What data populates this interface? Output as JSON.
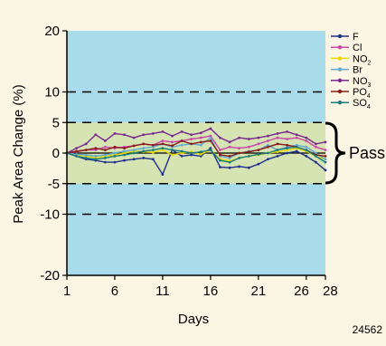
{
  "chart_data": {
    "type": "line",
    "xlabel": "Days",
    "ylabel": "Peak Area Change (%)",
    "xlim": [
      1,
      28
    ],
    "ylim": [
      -20,
      20
    ],
    "x_ticks": [
      "1",
      "6",
      "11",
      "16",
      "21",
      "26",
      "28"
    ],
    "y_ticks": [
      "20",
      "10",
      "5",
      "0",
      "-5",
      "-10",
      "-20"
    ],
    "x_tick_values": [
      1,
      6,
      11,
      16,
      21,
      26,
      28
    ],
    "y_tick_values": [
      20,
      10,
      5,
      0,
      -5,
      -10,
      -20
    ],
    "dashed_lines_at": [
      10,
      -10,
      5,
      -5
    ],
    "pass_band": [
      -5,
      5
    ],
    "pass_label": "Pass",
    "figure_number": "24562",
    "background_color": "#a8dcea",
    "pass_band_color": "#d5e4b2",
    "x": [
      1,
      2,
      3,
      4,
      5,
      6,
      7,
      8,
      9,
      10,
      11,
      12,
      13,
      14,
      15,
      16,
      17,
      18,
      19,
      20,
      21,
      22,
      23,
      24,
      25,
      26,
      27,
      28
    ],
    "series": [
      {
        "name": "F",
        "label_main": "F",
        "label_sub": "",
        "color": "#1f2f8c",
        "marker": "circle",
        "values": [
          0,
          -0.5,
          -1,
          -1.2,
          -1.5,
          -1.5,
          -1.2,
          -1,
          -0.8,
          -1,
          -3.5,
          0.5,
          -0.5,
          -0.3,
          -0.5,
          0.8,
          -2.3,
          -2.4,
          -2.2,
          -2.4,
          -1.8,
          -1,
          -0.5,
          0,
          0.3,
          -0.5,
          -1.5,
          -2.8
        ]
      },
      {
        "name": "Cl",
        "label_main": "Cl",
        "label_sub": "",
        "color": "#cc44aa",
        "marker": "square",
        "values": [
          0,
          0.2,
          0.5,
          0.5,
          1.0,
          0.8,
          1.0,
          1.2,
          1.5,
          1.3,
          2.0,
          1.8,
          2.0,
          2.3,
          2.5,
          2.8,
          0.5,
          1.0,
          0.8,
          1.0,
          1.5,
          2.0,
          2.5,
          2.3,
          2.5,
          2.0,
          1.0,
          0.5
        ]
      },
      {
        "name": "NO2",
        "label_main": "NO",
        "label_sub": "2",
        "color": "#e8d800",
        "marker": "triangle",
        "values": [
          0,
          -0.3,
          -0.5,
          -0.8,
          -0.5,
          -0.3,
          0,
          0.3,
          0.2,
          0.1,
          0.5,
          -0.3,
          0,
          0.2,
          -0.2,
          0.5,
          -1.0,
          -1.3,
          -0.8,
          -0.5,
          -0.3,
          0,
          0.2,
          0.5,
          0.8,
          0.3,
          -0.5,
          -1.0
        ]
      },
      {
        "name": "Br",
        "label_main": "Br",
        "label_sub": "",
        "color": "#60a8d0",
        "marker": "x",
        "values": [
          0,
          -0.2,
          -0.3,
          -0.5,
          -0.3,
          0,
          0.3,
          0.5,
          0.8,
          1.0,
          1.5,
          1.0,
          1.3,
          1.5,
          1.3,
          2.5,
          -0.5,
          -0.8,
          0,
          0.3,
          0.5,
          1.3,
          0.5,
          1.0,
          1.3,
          1.0,
          0,
          -1.0
        ]
      },
      {
        "name": "NO3",
        "label_main": "NO",
        "label_sub": "3",
        "color": "#7a2890",
        "marker": "star",
        "values": [
          0,
          0.8,
          1.5,
          3.0,
          2.0,
          3.2,
          3.0,
          2.5,
          3.0,
          3.2,
          3.5,
          2.8,
          3.5,
          3.0,
          3.3,
          4.0,
          2.5,
          1.8,
          2.5,
          2.3,
          2.5,
          2.8,
          3.2,
          3.5,
          3.0,
          2.5,
          1.5,
          1.8
        ]
      },
      {
        "name": "PO4",
        "label_main": "PO",
        "label_sub": "4",
        "color": "#8a1a1a",
        "marker": "circle",
        "values": [
          0,
          0.3,
          0.5,
          0.8,
          0.5,
          1.0,
          0.8,
          1.2,
          1.5,
          1.3,
          1.5,
          1.2,
          2.0,
          1.5,
          1.8,
          2.0,
          -0.3,
          -0.5,
          0,
          0.2,
          0.5,
          1.0,
          1.5,
          1.3,
          1.0,
          0.5,
          -0.3,
          -0.5
        ]
      },
      {
        "name": "SO4",
        "label_main": "SO",
        "label_sub": "4",
        "color": "#1a7a7a",
        "marker": "plus",
        "values": [
          0,
          -0.5,
          -0.8,
          -1.0,
          -0.8,
          -0.5,
          -0.3,
          0,
          0.3,
          0.5,
          0.8,
          0.5,
          0.3,
          0,
          0.2,
          0.5,
          -1.2,
          -1.5,
          -0.8,
          -0.5,
          -0.2,
          0,
          0.5,
          0.8,
          1.0,
          0.5,
          -0.5,
          -1.5
        ]
      }
    ]
  }
}
